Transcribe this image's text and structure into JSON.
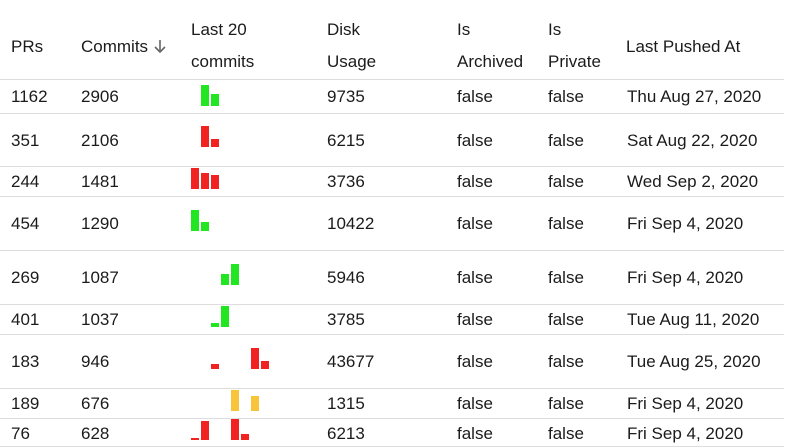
{
  "header": {
    "prs": "PRs",
    "commits": "Commits",
    "sort_icon": "arrow-down-icon",
    "last20_line1": "Last 20",
    "last20_line2": "commits",
    "disk_line1": "Disk",
    "disk_line2": "Usage",
    "archived_line1": "Is",
    "archived_line2": "Archived",
    "private_line1": "Is",
    "private_line2": "Private",
    "last_pushed": "Last Pushed At"
  },
  "colors": {
    "green": "#22e622",
    "red": "#f02222",
    "yellow": "#f8c43a",
    "divider": "#dddddd"
  },
  "rows": [
    {
      "prs": "1162",
      "commits": "2906",
      "disk": "9735",
      "archived": "false",
      "private": "false",
      "pushed": "Thu Aug 27, 2020",
      "spark": [
        {
          "slot": 0,
          "level": 1.0,
          "color": "green"
        },
        {
          "slot": 1,
          "level": 0.55,
          "color": "green"
        }
      ]
    },
    {
      "prs": "351",
      "commits": "2106",
      "disk": "6215",
      "archived": "false",
      "private": "false",
      "pushed": "Sat Aug 22, 2020",
      "spark": [
        {
          "slot": 0,
          "level": 1.0,
          "color": "red"
        },
        {
          "slot": 1,
          "level": 0.4,
          "color": "red"
        }
      ]
    },
    {
      "prs": "244",
      "commits": "1481",
      "disk": "3736",
      "archived": "false",
      "private": "false",
      "pushed": "Wed Sep 2, 2020",
      "spark": [
        {
          "slot": -1,
          "level": 1.0,
          "color": "red"
        },
        {
          "slot": 0,
          "level": 0.75,
          "color": "red"
        },
        {
          "slot": 1,
          "level": 0.65,
          "color": "red"
        }
      ]
    },
    {
      "prs": "454",
      "commits": "1290",
      "disk": "10422",
      "archived": "false",
      "private": "false",
      "pushed": "Fri Sep 4, 2020",
      "spark": [
        {
          "slot": -1,
          "level": 1.0,
          "color": "green"
        },
        {
          "slot": 0,
          "level": 0.45,
          "color": "green"
        }
      ]
    },
    {
      "prs": "269",
      "commits": "1087",
      "disk": "5946",
      "archived": "false",
      "private": "false",
      "pushed": "Fri Sep 4, 2020",
      "spark": [
        {
          "slot": 2,
          "level": 0.5,
          "color": "green"
        },
        {
          "slot": 3,
          "level": 1.0,
          "color": "green"
        }
      ]
    },
    {
      "prs": "401",
      "commits": "1037",
      "disk": "3785",
      "archived": "false",
      "private": "false",
      "pushed": "Tue Aug 11, 2020",
      "spark": [
        {
          "slot": 1,
          "level": 0.2,
          "color": "green"
        },
        {
          "slot": 2,
          "level": 1.0,
          "color": "green"
        }
      ]
    },
    {
      "prs": "183",
      "commits": "946",
      "disk": "43677",
      "archived": "false",
      "private": "false",
      "pushed": "Tue Aug 25, 2020",
      "spark": [
        {
          "slot": 1,
          "level": 0.25,
          "color": "red"
        },
        {
          "slot": 5,
          "level": 1.0,
          "color": "red"
        },
        {
          "slot": 6,
          "level": 0.4,
          "color": "red"
        }
      ]
    },
    {
      "prs": "189",
      "commits": "676",
      "disk": "1315",
      "archived": "false",
      "private": "false",
      "pushed": "Fri Sep 4, 2020",
      "spark": [
        {
          "slot": 3,
          "level": 1.0,
          "color": "yellow"
        },
        {
          "slot": 5,
          "level": 0.7,
          "color": "yellow"
        }
      ]
    },
    {
      "prs": "76",
      "commits": "628",
      "disk": "6213",
      "archived": "false",
      "private": "false",
      "pushed": "Fri Sep 4, 2020",
      "spark": [
        {
          "slot": -1,
          "level": 0.1,
          "color": "red"
        },
        {
          "slot": 0,
          "level": 0.9,
          "color": "red"
        },
        {
          "slot": 3,
          "level": 1.0,
          "color": "red"
        },
        {
          "slot": 4,
          "level": 0.3,
          "color": "red"
        }
      ]
    }
  ]
}
